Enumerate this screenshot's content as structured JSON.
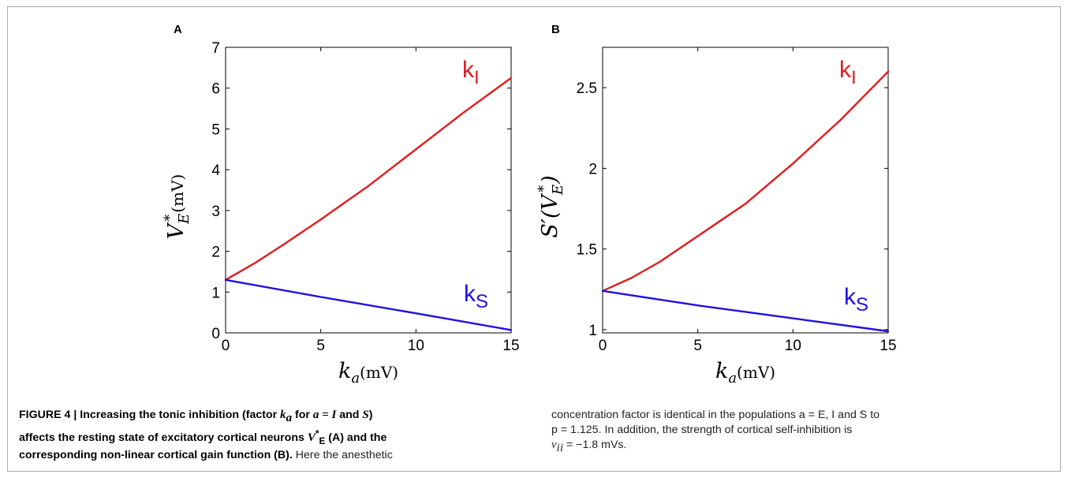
{
  "chart_data": [
    {
      "panel": "A",
      "type": "line",
      "ylabel": "V_E^*(mV)",
      "xlabel": "k_a(mV)",
      "xlim": [
        0,
        15
      ],
      "ylim": [
        0,
        7
      ],
      "xticks": [
        0,
        5,
        10,
        15
      ],
      "yticks": [
        0,
        1,
        2,
        3,
        4,
        5,
        6,
        7
      ],
      "series": [
        {
          "name": "k_I",
          "color": "#e41a1c",
          "x": [
            0,
            1.5,
            3,
            5,
            7.5,
            10,
            12.5,
            15
          ],
          "y": [
            1.3,
            1.7,
            2.15,
            2.78,
            3.6,
            4.5,
            5.4,
            6.25
          ]
        },
        {
          "name": "k_S",
          "color": "#1f10e0",
          "x": [
            0,
            5,
            10,
            15
          ],
          "y": [
            1.3,
            0.88,
            0.48,
            0.07
          ]
        }
      ]
    },
    {
      "panel": "B",
      "type": "line",
      "ylabel": "S'(V_E^*)",
      "xlabel": "k_a(mV)",
      "xlim": [
        0,
        15
      ],
      "ylim": [
        0.98,
        2.75
      ],
      "xticks": [
        0,
        5,
        10,
        15
      ],
      "yticks": [
        1,
        1.5,
        2,
        2.5
      ],
      "series": [
        {
          "name": "k_I",
          "color": "#e41a1c",
          "x": [
            0,
            1.5,
            3,
            5,
            7.5,
            10,
            12.5,
            15
          ],
          "y": [
            1.24,
            1.32,
            1.42,
            1.58,
            1.78,
            2.03,
            2.3,
            2.6
          ]
        },
        {
          "name": "k_S",
          "color": "#1f10e0",
          "x": [
            0,
            5,
            10,
            15
          ],
          "y": [
            1.24,
            1.15,
            1.07,
            0.99
          ]
        }
      ]
    }
  ],
  "series_labels": {
    "ki_main": "k",
    "ki_sub": "I",
    "ks_main": "k",
    "ks_sub": "S"
  },
  "axis_text": {
    "a_ylabel_main": "V",
    "a_ylabel_sub": "E",
    "a_ylabel_sup": "*",
    "a_ylabel_unit": "(mV)",
    "b_ylabel_main": "S′(V",
    "b_ylabel_sub": "E",
    "b_ylabel_sup": "*",
    "b_ylabel_close": ")",
    "xlabel_main": "k",
    "xlabel_sub": "a",
    "xlabel_unit": "(mV)"
  },
  "caption": {
    "left_bold_1": "FIGURE 4 | Increasing the tonic inhibition (factor ",
    "left_ka": "k",
    "left_ka_sub": "a",
    "left_bold_2": " for ",
    "left_eq": "a = I",
    "left_bold_3": " and ",
    "left_S": "S",
    "left_bold_4": ")",
    "left_bold_5": "affects the resting state of excitatory cortical neurons ",
    "left_v": "V",
    "left_v_sup": "*",
    "left_v_sub": "E",
    "left_bold_6": " (A) and the",
    "left_bold_7": "corresponding non-linear cortical gain function (B).",
    "left_normal_1": " Here the anesthetic",
    "right_line_1": "concentration factor is identical in the populations a = E, I and S to",
    "right_line_2": "p = 1.125. In addition, the strength of cortical self-inhibition is",
    "right_line_3": "ν",
    "right_line_3_sub": "ii",
    "right_line_3_rest": " = −1.8 mVs."
  }
}
